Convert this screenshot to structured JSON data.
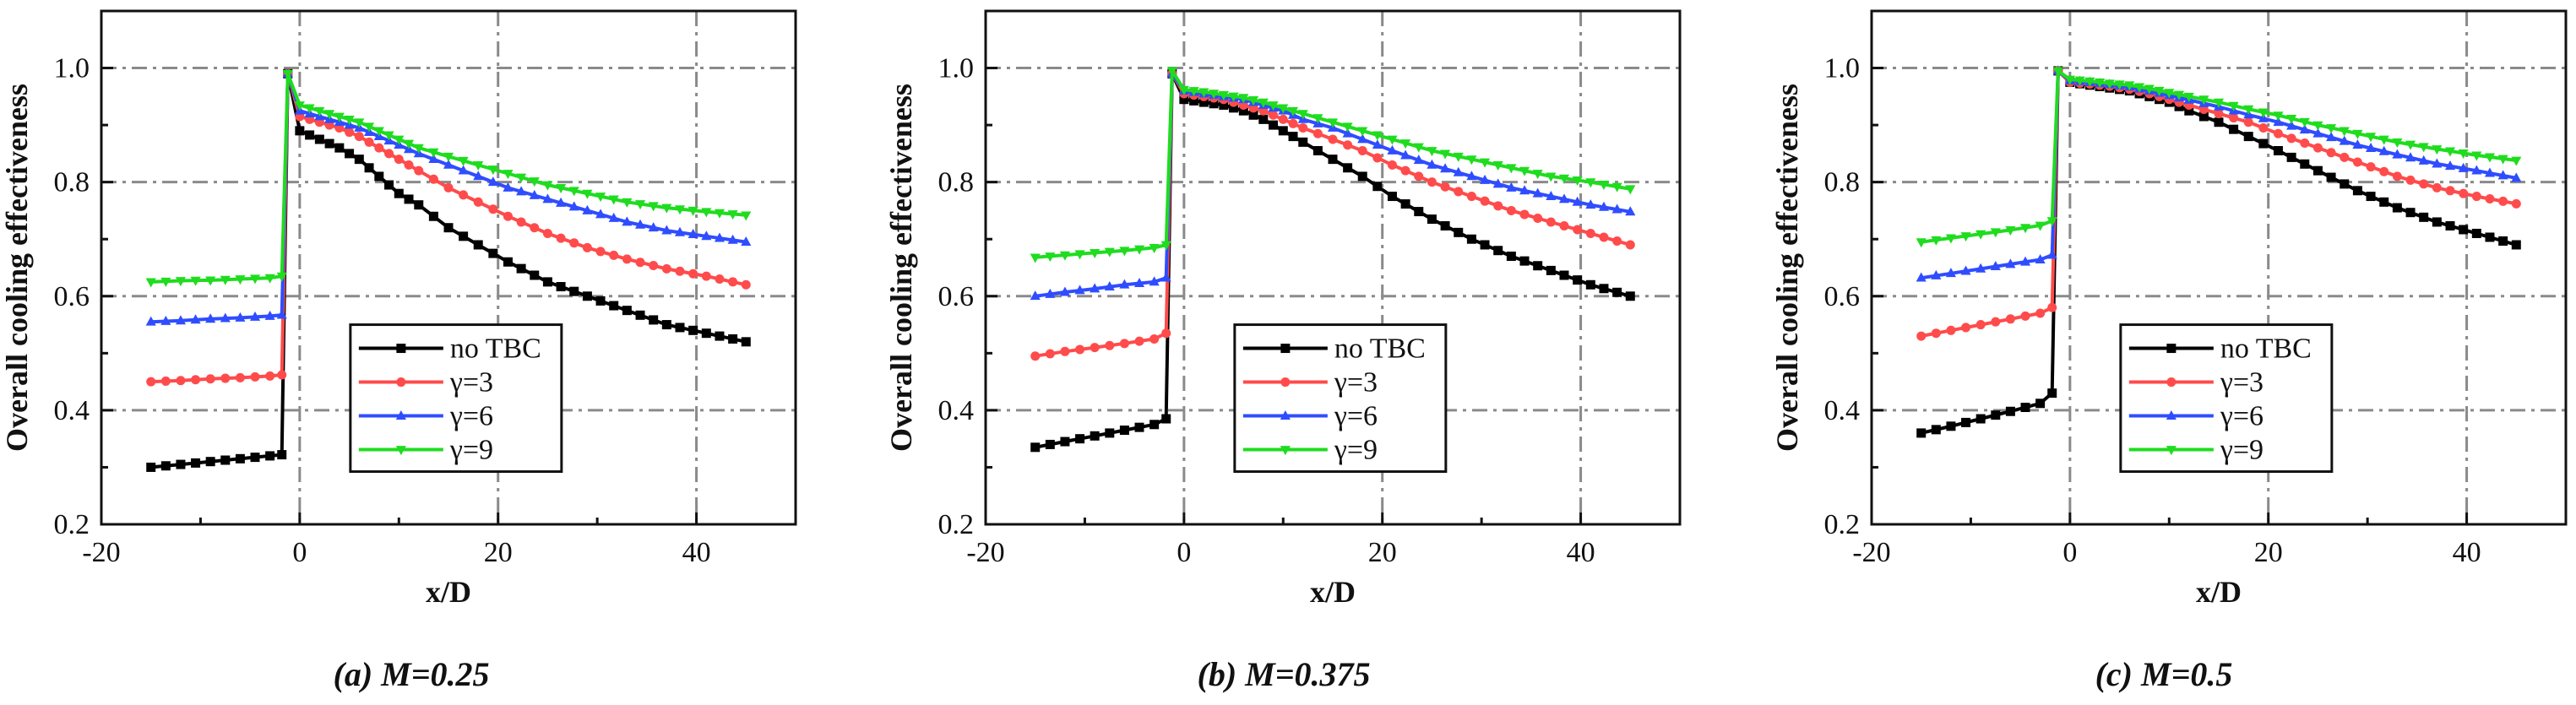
{
  "colors": {
    "no_tbc": "#000000",
    "gamma3": "#ff4b4b",
    "gamma6": "#2f4dff",
    "gamma9": "#1fdc1f",
    "axis": "#111111",
    "grid": "#8a8a8a"
  },
  "chart_data": [
    {
      "type": "line",
      "caption": "(a)  M=0.25",
      "xlabel": "x/D",
      "ylabel": "Overall cooling effectiveness",
      "xlim": [
        -20,
        50
      ],
      "ylim": [
        0.2,
        1.1
      ],
      "xticks": [
        -20,
        0,
        20,
        40
      ],
      "yticks": [
        0.2,
        0.4,
        0.6,
        0.8,
        1.0
      ],
      "xtick_labels": [
        "-20",
        "0",
        "20",
        "40"
      ],
      "ytick_labels": [
        "0.2",
        "0.4",
        "0.6",
        "0.8",
        "1.0"
      ],
      "grid": true,
      "legend_position": "bottom-center",
      "series": [
        {
          "name": "no TBC",
          "marker": "square",
          "x": [
            -15,
            -12,
            -9,
            -6,
            -3,
            -1.8,
            -1.2,
            0,
            2,
            4,
            6,
            8,
            10,
            12,
            15,
            18,
            21,
            25,
            29,
            33,
            37,
            41,
            45
          ],
          "y": [
            0.3,
            0.305,
            0.31,
            0.315,
            0.32,
            0.322,
            0.99,
            0.89,
            0.875,
            0.86,
            0.84,
            0.81,
            0.78,
            0.76,
            0.72,
            0.69,
            0.66,
            0.625,
            0.6,
            0.575,
            0.55,
            0.535,
            0.52
          ]
        },
        {
          "name": "γ=3",
          "marker": "circle",
          "x": [
            -15,
            -12,
            -9,
            -6,
            -3,
            -1.8,
            -1.2,
            0,
            2,
            4,
            6,
            8,
            10,
            12,
            15,
            18,
            21,
            25,
            29,
            33,
            37,
            41,
            45
          ],
          "y": [
            0.45,
            0.452,
            0.455,
            0.457,
            0.46,
            0.462,
            0.99,
            0.915,
            0.905,
            0.895,
            0.88,
            0.86,
            0.84,
            0.82,
            0.79,
            0.765,
            0.74,
            0.71,
            0.685,
            0.665,
            0.648,
            0.635,
            0.62
          ]
        },
        {
          "name": "γ=6",
          "marker": "triangle-up",
          "x": [
            -15,
            -12,
            -9,
            -6,
            -3,
            -1.8,
            -1.2,
            0,
            2,
            4,
            6,
            8,
            10,
            12,
            15,
            18,
            21,
            25,
            29,
            33,
            37,
            41,
            45
          ],
          "y": [
            0.555,
            0.557,
            0.56,
            0.562,
            0.565,
            0.567,
            0.99,
            0.925,
            0.915,
            0.905,
            0.895,
            0.88,
            0.865,
            0.85,
            0.83,
            0.81,
            0.79,
            0.77,
            0.75,
            0.73,
            0.715,
            0.705,
            0.695
          ]
        },
        {
          "name": "γ=9",
          "marker": "triangle-down",
          "x": [
            -15,
            -12,
            -9,
            -6,
            -3,
            -1.8,
            -1.2,
            0,
            2,
            4,
            6,
            8,
            10,
            12,
            15,
            18,
            21,
            25,
            29,
            33,
            37,
            41,
            45
          ],
          "y": [
            0.625,
            0.627,
            0.628,
            0.63,
            0.632,
            0.635,
            0.99,
            0.935,
            0.925,
            0.915,
            0.905,
            0.89,
            0.875,
            0.86,
            0.845,
            0.83,
            0.815,
            0.795,
            0.78,
            0.765,
            0.755,
            0.748,
            0.742
          ]
        }
      ]
    },
    {
      "type": "line",
      "caption": "(b)  M=0.375",
      "xlabel": "x/D",
      "ylabel": "Overall cooling effectiveness",
      "xlim": [
        -20,
        50
      ],
      "ylim": [
        0.2,
        1.1
      ],
      "xticks": [
        -20,
        0,
        20,
        40
      ],
      "yticks": [
        0.2,
        0.4,
        0.6,
        0.8,
        1.0
      ],
      "xtick_labels": [
        "-20",
        "0",
        "20",
        "40"
      ],
      "ytick_labels": [
        "0.2",
        "0.4",
        "0.6",
        "0.8",
        "1.0"
      ],
      "grid": true,
      "legend_position": "bottom-center",
      "series": [
        {
          "name": "no TBC",
          "marker": "square",
          "x": [
            -15,
            -12,
            -9,
            -6,
            -3,
            -1.8,
            -1.2,
            0,
            2,
            4,
            6,
            8,
            10,
            12,
            15,
            18,
            21,
            25,
            29,
            33,
            37,
            41,
            45
          ],
          "y": [
            0.335,
            0.345,
            0.355,
            0.365,
            0.375,
            0.385,
            0.99,
            0.945,
            0.94,
            0.935,
            0.925,
            0.91,
            0.89,
            0.87,
            0.84,
            0.81,
            0.775,
            0.735,
            0.7,
            0.67,
            0.645,
            0.62,
            0.6
          ]
        },
        {
          "name": "γ=3",
          "marker": "circle",
          "x": [
            -15,
            -12,
            -9,
            -6,
            -3,
            -1.8,
            -1.2,
            0,
            2,
            4,
            6,
            8,
            10,
            12,
            15,
            18,
            21,
            25,
            29,
            33,
            37,
            41,
            45
          ],
          "y": [
            0.495,
            0.503,
            0.51,
            0.517,
            0.525,
            0.535,
            0.99,
            0.955,
            0.95,
            0.945,
            0.935,
            0.925,
            0.91,
            0.895,
            0.875,
            0.855,
            0.83,
            0.8,
            0.775,
            0.75,
            0.73,
            0.71,
            0.69
          ]
        },
        {
          "name": "γ=6",
          "marker": "triangle-up",
          "x": [
            -15,
            -12,
            -9,
            -6,
            -3,
            -1.8,
            -1.2,
            0,
            2,
            4,
            6,
            8,
            10,
            12,
            15,
            18,
            21,
            25,
            29,
            33,
            37,
            41,
            45
          ],
          "y": [
            0.6,
            0.607,
            0.613,
            0.62,
            0.625,
            0.632,
            0.99,
            0.96,
            0.955,
            0.95,
            0.945,
            0.935,
            0.925,
            0.91,
            0.895,
            0.875,
            0.855,
            0.83,
            0.81,
            0.79,
            0.775,
            0.76,
            0.748
          ]
        },
        {
          "name": "γ=9",
          "marker": "triangle-down",
          "x": [
            -15,
            -12,
            -9,
            -6,
            -3,
            -1.8,
            -1.2,
            0,
            2,
            4,
            6,
            8,
            10,
            12,
            15,
            18,
            21,
            25,
            29,
            33,
            37,
            41,
            45
          ],
          "y": [
            0.668,
            0.672,
            0.676,
            0.68,
            0.685,
            0.69,
            0.995,
            0.962,
            0.958,
            0.953,
            0.948,
            0.94,
            0.93,
            0.92,
            0.905,
            0.89,
            0.875,
            0.855,
            0.84,
            0.825,
            0.81,
            0.8,
            0.788
          ]
        }
      ]
    },
    {
      "type": "line",
      "caption": "(c)  M=0.5",
      "xlabel": "x/D",
      "ylabel": "Overall cooling effectiveness",
      "xlim": [
        -20,
        50
      ],
      "ylim": [
        0.2,
        1.1
      ],
      "xticks": [
        -20,
        0,
        20,
        40
      ],
      "yticks": [
        0.2,
        0.4,
        0.6,
        0.8,
        1.0
      ],
      "xtick_labels": [
        "-20",
        "0",
        "20",
        "40"
      ],
      "ytick_labels": [
        "0.2",
        "0.4",
        "0.6",
        "0.8",
        "1.0"
      ],
      "grid": true,
      "legend_position": "bottom-center",
      "series": [
        {
          "name": "no TBC",
          "marker": "square",
          "x": [
            -15,
            -12,
            -9,
            -6,
            -3,
            -1.8,
            -1.2,
            0,
            2,
            4,
            6,
            8,
            10,
            12,
            15,
            18,
            21,
            25,
            29,
            33,
            37,
            41,
            45
          ],
          "y": [
            0.36,
            0.372,
            0.385,
            0.398,
            0.412,
            0.43,
            0.995,
            0.975,
            0.97,
            0.965,
            0.96,
            0.95,
            0.94,
            0.925,
            0.905,
            0.88,
            0.855,
            0.82,
            0.785,
            0.755,
            0.73,
            0.71,
            0.69
          ]
        },
        {
          "name": "γ=3",
          "marker": "circle",
          "x": [
            -15,
            -12,
            -9,
            -6,
            -3,
            -1.8,
            -1.2,
            0,
            2,
            4,
            6,
            8,
            10,
            12,
            15,
            18,
            21,
            25,
            29,
            33,
            37,
            41,
            45
          ],
          "y": [
            0.53,
            0.54,
            0.55,
            0.56,
            0.57,
            0.58,
            0.995,
            0.975,
            0.972,
            0.968,
            0.963,
            0.955,
            0.945,
            0.935,
            0.92,
            0.905,
            0.885,
            0.86,
            0.835,
            0.81,
            0.79,
            0.775,
            0.762
          ]
        },
        {
          "name": "γ=6",
          "marker": "triangle-up",
          "x": [
            -15,
            -12,
            -9,
            -6,
            -3,
            -1.8,
            -1.2,
            0,
            2,
            4,
            6,
            8,
            10,
            12,
            15,
            18,
            21,
            25,
            29,
            33,
            37,
            41,
            45
          ],
          "y": [
            0.632,
            0.64,
            0.648,
            0.656,
            0.664,
            0.672,
            0.995,
            0.978,
            0.975,
            0.971,
            0.967,
            0.96,
            0.952,
            0.944,
            0.932,
            0.918,
            0.905,
            0.885,
            0.865,
            0.848,
            0.832,
            0.82,
            0.807
          ]
        },
        {
          "name": "γ=9",
          "marker": "triangle-down",
          "x": [
            -15,
            -12,
            -9,
            -6,
            -3,
            -1.8,
            -1.2,
            0,
            2,
            4,
            6,
            8,
            10,
            12,
            15,
            18,
            21,
            25,
            29,
            33,
            37,
            41,
            45
          ],
          "y": [
            0.695,
            0.702,
            0.709,
            0.716,
            0.724,
            0.732,
            0.995,
            0.98,
            0.977,
            0.973,
            0.97,
            0.964,
            0.957,
            0.95,
            0.94,
            0.928,
            0.917,
            0.9,
            0.885,
            0.87,
            0.858,
            0.847,
            0.838
          ]
        }
      ]
    }
  ]
}
